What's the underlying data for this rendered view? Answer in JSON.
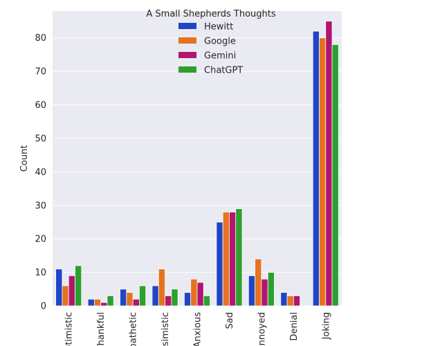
{
  "chart_data": {
    "type": "bar",
    "categories": [
      "Optimistic",
      "Thankful",
      "Empathetic",
      "Pessimistic",
      "Anxious",
      "Sad",
      "Annoyed",
      "Denial",
      "Joking"
    ],
    "series": [
      {
        "name": "Hewitt",
        "color": "#1f45c8",
        "values": [
          11,
          2,
          5,
          6,
          4,
          25,
          9,
          4,
          82
        ]
      },
      {
        "name": "Google",
        "color": "#e5731f",
        "values": [
          6,
          2,
          4,
          11,
          8,
          28,
          14,
          3,
          80
        ]
      },
      {
        "name": "Gemini",
        "color": "#b0166e",
        "values": [
          9,
          1,
          2,
          3,
          7,
          28,
          8,
          3,
          85
        ]
      },
      {
        "name": "ChatGPT",
        "color": "#2ca02c",
        "values": [
          12,
          3,
          6,
          5,
          3,
          29,
          10,
          0,
          78
        ]
      }
    ],
    "legend_title": "A Small Shepherds Thoughts",
    "legend_position": "top-center",
    "xlabel": "",
    "ylabel": "Count",
    "ylim": [
      0,
      88
    ],
    "yticks": [
      0,
      10,
      20,
      30,
      40,
      50,
      60,
      70,
      80
    ],
    "grid": true,
    "background": "#eaeaf2"
  }
}
